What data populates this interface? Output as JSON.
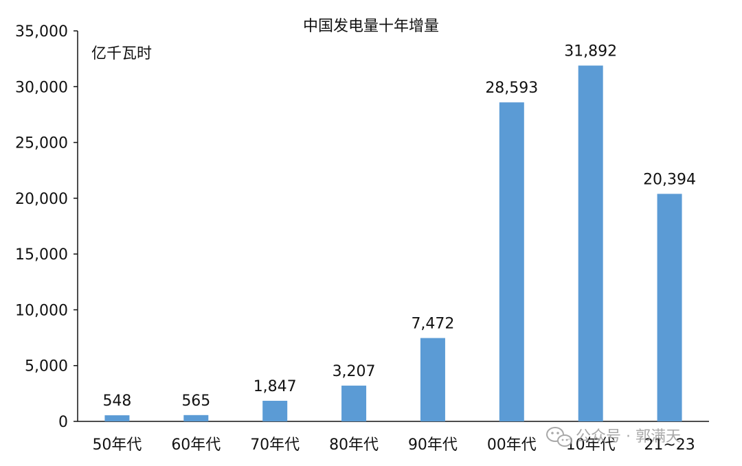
{
  "chart_data": {
    "type": "bar",
    "title": "中国发电量十年增量",
    "ylabel": "亿千瓦时",
    "xlabel": "",
    "categories": [
      "50年代",
      "60年代",
      "70年代",
      "80年代",
      "90年代",
      "00年代",
      "10年代",
      "21~23"
    ],
    "values": [
      548,
      565,
      1847,
      3207,
      7472,
      28593,
      31892,
      20394
    ],
    "value_labels": [
      "548",
      "565",
      "1,847",
      "3,207",
      "7,472",
      "28,593",
      "31,892",
      "20,394"
    ],
    "ylim": [
      0,
      35000
    ],
    "yticks": [
      0,
      5000,
      10000,
      15000,
      20000,
      25000,
      30000,
      35000
    ],
    "ytick_labels": [
      "0",
      "5,000",
      "10,000",
      "15,000",
      "20,000",
      "25,000",
      "30,000",
      "35,000"
    ],
    "grid": false,
    "legend": "none",
    "bar_color": "#5B9BD5"
  },
  "watermark": {
    "text": "公众号 · 郭满天",
    "icon": "wechat-icon"
  }
}
